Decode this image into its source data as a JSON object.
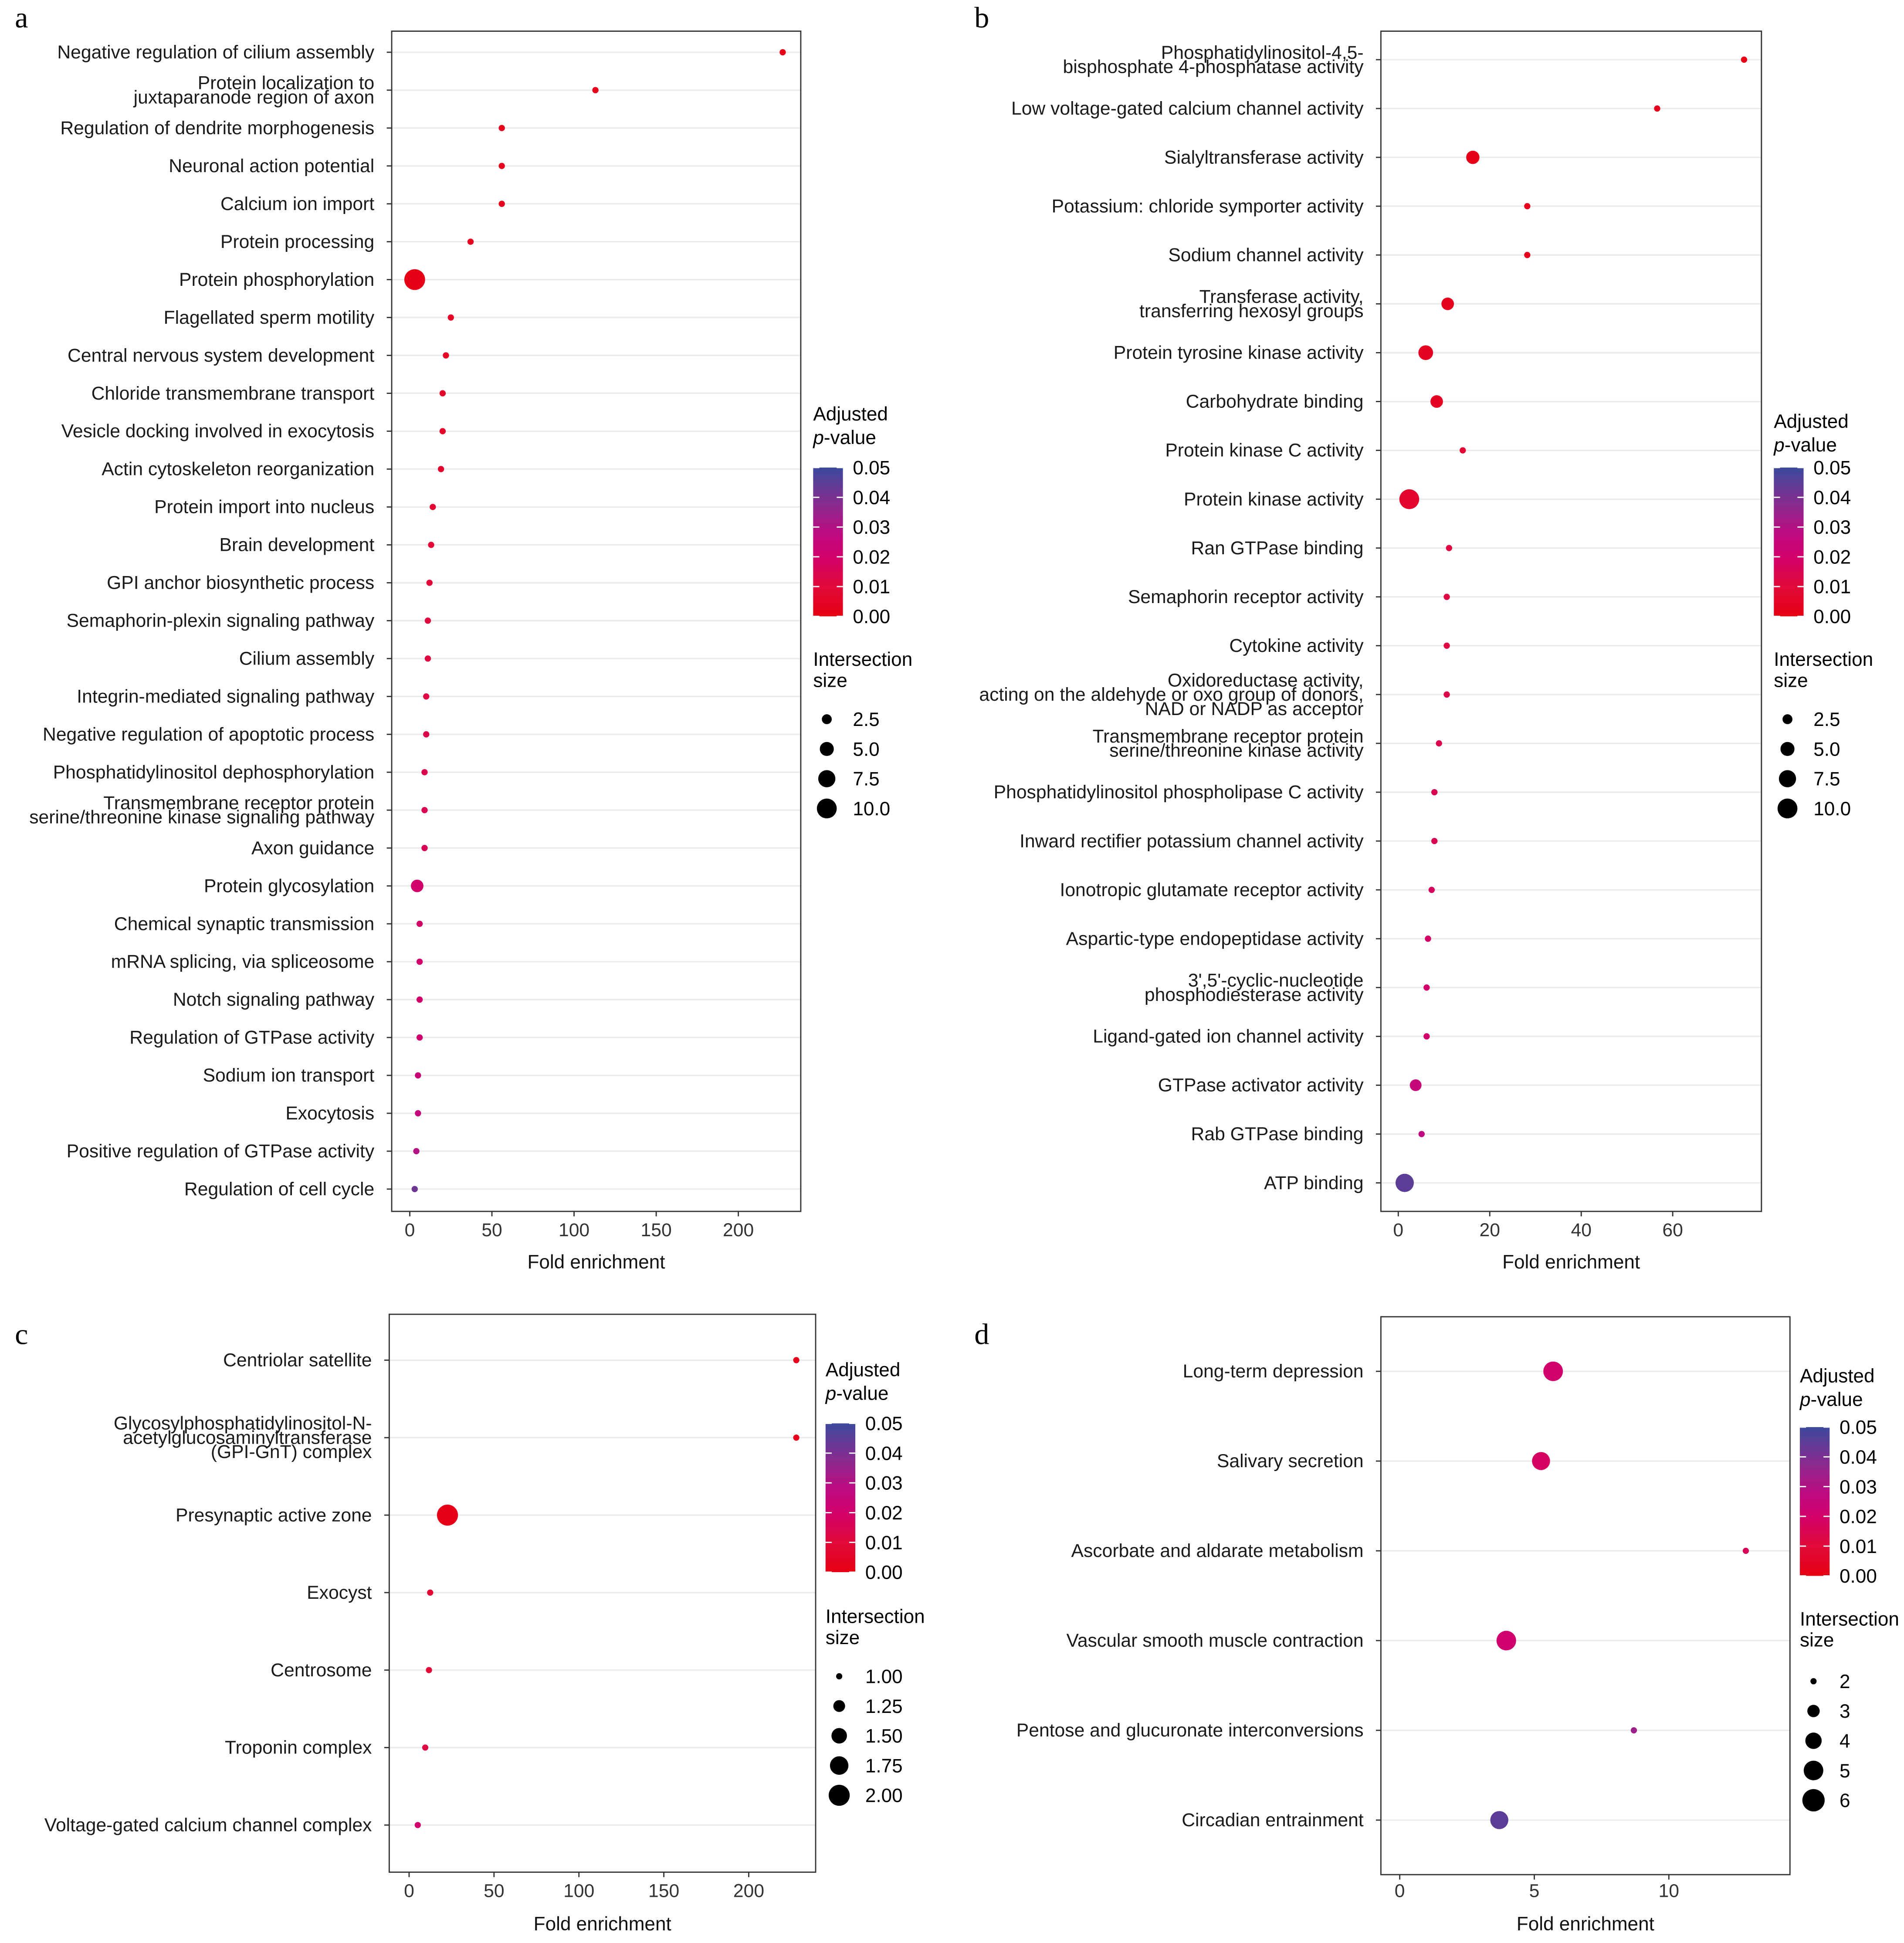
{
  "chart_data": [
    {
      "panel": "a",
      "type": "scatter",
      "xlabel": "Fold enrichment",
      "xticks": [
        0,
        50,
        100,
        150,
        200
      ],
      "xlim": [
        -11,
        238
      ],
      "color_legend": {
        "title": [
          "Adjusted",
          "p-value"
        ],
        "ticks": [
          "0.05",
          "0.04",
          "0.03",
          "0.02",
          "0.01",
          "0.00"
        ],
        "range": [
          0,
          0.05
        ],
        "low_color": "#e60012",
        "mid_color": "#c9007a",
        "high_color": "#3b4a9c"
      },
      "size_legend": {
        "title": [
          "Intersection",
          "size"
        ],
        "values": [
          2.5,
          5.0,
          7.5,
          10.0
        ],
        "labels": [
          "2.5",
          "5.0",
          "7.5",
          "10.0"
        ]
      },
      "terms": [
        {
          "label": [
            "Negative regulation of cilium assembly"
          ],
          "fold": 227,
          "size": 1,
          "p": 0.001
        },
        {
          "label": [
            "Protein localization to",
            "juxtaparanode region of axon"
          ],
          "fold": 113,
          "size": 1,
          "p": 0.002
        },
        {
          "label": [
            "Regulation of dendrite morphogenesis"
          ],
          "fold": 56,
          "size": 1,
          "p": 0.003
        },
        {
          "label": [
            "Neuronal action potential"
          ],
          "fold": 56,
          "size": 1,
          "p": 0.003
        },
        {
          "label": [
            "Calcium ion import"
          ],
          "fold": 56,
          "size": 1,
          "p": 0.003
        },
        {
          "label": [
            "Protein processing"
          ],
          "fold": 37,
          "size": 1,
          "p": 0.004
        },
        {
          "label": [
            "Protein phosphorylation"
          ],
          "fold": 3,
          "size": 11,
          "p": 0.001
        },
        {
          "label": [
            "Flagellated sperm motility"
          ],
          "fold": 25,
          "size": 1,
          "p": 0.005
        },
        {
          "label": [
            "Central nervous system development"
          ],
          "fold": 22,
          "size": 1,
          "p": 0.005
        },
        {
          "label": [
            "Chloride transmembrane transport"
          ],
          "fold": 20,
          "size": 1,
          "p": 0.006
        },
        {
          "label": [
            "Vesicle docking involved in exocytosis"
          ],
          "fold": 20,
          "size": 1,
          "p": 0.006
        },
        {
          "label": [
            "Actin cytoskeleton reorganization"
          ],
          "fold": 19,
          "size": 1,
          "p": 0.007
        },
        {
          "label": [
            "Protein import into nucleus"
          ],
          "fold": 14,
          "size": 1,
          "p": 0.008
        },
        {
          "label": [
            "Brain development"
          ],
          "fold": 13,
          "size": 1,
          "p": 0.009
        },
        {
          "label": [
            "GPI anchor biosynthetic process"
          ],
          "fold": 12,
          "size": 1,
          "p": 0.01
        },
        {
          "label": [
            "Semaphorin-plexin signaling pathway"
          ],
          "fold": 11,
          "size": 1,
          "p": 0.011
        },
        {
          "label": [
            "Cilium assembly"
          ],
          "fold": 11,
          "size": 1,
          "p": 0.011
        },
        {
          "label": [
            "Integrin-mediated signaling pathway"
          ],
          "fold": 10,
          "size": 1,
          "p": 0.012
        },
        {
          "label": [
            "Negative regulation of apoptotic process"
          ],
          "fold": 10,
          "size": 1,
          "p": 0.013
        },
        {
          "label": [
            "Phosphatidylinositol dephosphorylation"
          ],
          "fold": 9,
          "size": 1,
          "p": 0.014
        },
        {
          "label": [
            "Transmembrane receptor protein",
            "serine/threonine kinase signaling pathway"
          ],
          "fold": 9,
          "size": 1,
          "p": 0.015
        },
        {
          "label": [
            "Axon guidance"
          ],
          "fold": 9,
          "size": 1,
          "p": 0.016
        },
        {
          "label": [
            "Protein glycosylation"
          ],
          "fold": 4.5,
          "size": 4,
          "p": 0.02
        },
        {
          "label": [
            "Chemical synaptic transmission"
          ],
          "fold": 6,
          "size": 1,
          "p": 0.019
        },
        {
          "label": [
            "mRNA splicing, via spliceosome"
          ],
          "fold": 6,
          "size": 1,
          "p": 0.02
        },
        {
          "label": [
            "Notch signaling pathway"
          ],
          "fold": 6,
          "size": 1,
          "p": 0.02
        },
        {
          "label": [
            "Regulation of GTPase activity"
          ],
          "fold": 6,
          "size": 1,
          "p": 0.021
        },
        {
          "label": [
            "Sodium ion transport"
          ],
          "fold": 5,
          "size": 1,
          "p": 0.024
        },
        {
          "label": [
            "Exocytosis"
          ],
          "fold": 5,
          "size": 1,
          "p": 0.026
        },
        {
          "label": [
            "Positive regulation of GTPase activity"
          ],
          "fold": 4,
          "size": 1,
          "p": 0.03
        },
        {
          "label": [
            "Regulation of cell cycle"
          ],
          "fold": 3,
          "size": 1,
          "p": 0.042
        }
      ]
    },
    {
      "panel": "b",
      "type": "scatter",
      "xlabel": "Fold enrichment",
      "xticks": [
        0,
        20,
        40,
        60
      ],
      "xlim": [
        -3.8,
        79.4
      ],
      "color_legend": {
        "title": [
          "Adjusted",
          "p-value"
        ],
        "ticks": [
          "0.05",
          "0.04",
          "0.03",
          "0.02",
          "0.01",
          "0.00"
        ],
        "range": [
          0,
          0.05
        ],
        "low_color": "#e60012",
        "mid_color": "#c9007a",
        "high_color": "#3b4a9c"
      },
      "size_legend": {
        "title": [
          "Intersection",
          "size"
        ],
        "values": [
          2.5,
          5.0,
          7.5,
          10.0
        ],
        "labels": [
          "2.5",
          "5.0",
          "7.5",
          "10.0"
        ]
      },
      "terms": [
        {
          "label": [
            "Phosphatidylinositol-4,5-",
            "bisphosphate 4-phosphatase activity"
          ],
          "fold": 75.6,
          "size": 1,
          "p": 0.001
        },
        {
          "label": [
            "Low voltage-gated calcium channel activity"
          ],
          "fold": 56.6,
          "size": 1,
          "p": 0.002
        },
        {
          "label": [
            "Sialyltransferase activity"
          ],
          "fold": 16.3,
          "size": 4.5,
          "p": 0.001
        },
        {
          "label": [
            "Potassium: chloride symporter activity"
          ],
          "fold": 28.2,
          "size": 1,
          "p": 0.003
        },
        {
          "label": [
            "Sodium channel activity"
          ],
          "fold": 28.2,
          "size": 1,
          "p": 0.003
        },
        {
          "label": [
            "Transferase activity,",
            "transferring hexosyl groups"
          ],
          "fold": 10.8,
          "size": 4,
          "p": 0.003
        },
        {
          "label": [
            "Protein tyrosine kinase activity"
          ],
          "fold": 6,
          "size": 5.5,
          "p": 0.004
        },
        {
          "label": [
            "Carbohydrate binding"
          ],
          "fold": 8.4,
          "size": 4,
          "p": 0.004
        },
        {
          "label": [
            "Protein kinase C activity"
          ],
          "fold": 14.1,
          "size": 1,
          "p": 0.008
        },
        {
          "label": [
            "Protein kinase activity"
          ],
          "fold": 2.4,
          "size": 10,
          "p": 0.007
        },
        {
          "label": [
            "Ran GTPase binding"
          ],
          "fold": 11.1,
          "size": 1,
          "p": 0.011
        },
        {
          "label": [
            "Semaphorin receptor activity"
          ],
          "fold": 10.6,
          "size": 1,
          "p": 0.012
        },
        {
          "label": [
            "Cytokine activity"
          ],
          "fold": 10.6,
          "size": 1,
          "p": 0.012
        },
        {
          "label": [
            "Oxidoreductase activity,",
            "acting on the aldehyde or oxo group of donors,",
            "NAD or NADP as acceptor"
          ],
          "fold": 10.6,
          "size": 1,
          "p": 0.013
        },
        {
          "label": [
            "Transmembrane receptor protein",
            "serine/threonine kinase activity"
          ],
          "fold": 8.9,
          "size": 1,
          "p": 0.014
        },
        {
          "label": [
            "Phosphatidylinositol phospholipase C activity"
          ],
          "fold": 7.9,
          "size": 1,
          "p": 0.015
        },
        {
          "label": [
            "Inward rectifier potassium channel activity"
          ],
          "fold": 7.9,
          "size": 1,
          "p": 0.015
        },
        {
          "label": [
            "Ionotropic glutamate receptor activity"
          ],
          "fold": 7.3,
          "size": 1,
          "p": 0.017
        },
        {
          "label": [
            "Aspartic-type endopeptidase activity"
          ],
          "fold": 6.5,
          "size": 1,
          "p": 0.019
        },
        {
          "label": [
            "3',5'-cyclic-nucleotide",
            "phosphodiesterase activity"
          ],
          "fold": 6.2,
          "size": 1,
          "p": 0.02
        },
        {
          "label": [
            "Ligand-gated ion channel activity"
          ],
          "fold": 6.2,
          "size": 1,
          "p": 0.02
        },
        {
          "label": [
            "GTPase activator activity"
          ],
          "fold": 3.8,
          "size": 3.5,
          "p": 0.025
        },
        {
          "label": [
            "Rab GTPase binding"
          ],
          "fold": 5.1,
          "size": 1,
          "p": 0.027
        },
        {
          "label": [
            "ATP binding"
          ],
          "fold": 1.4,
          "size": 8.5,
          "p": 0.045
        }
      ]
    },
    {
      "panel": "c",
      "type": "scatter",
      "xlabel": "Fold enrichment",
      "xticks": [
        0,
        50,
        100,
        150,
        200
      ],
      "xlim": [
        -11.7,
        239.4
      ],
      "color_legend": {
        "title": [
          "Adjusted",
          "p-value"
        ],
        "ticks": [
          "0.05",
          "0.04",
          "0.03",
          "0.02",
          "0.01",
          "0.00"
        ],
        "range": [
          0,
          0.05
        ],
        "low_color": "#e60012",
        "mid_color": "#c9007a",
        "high_color": "#3b4a9c"
      },
      "size_legend": {
        "title": [
          "Intersection",
          "size"
        ],
        "values": [
          1.0,
          1.25,
          1.5,
          1.75,
          2.0
        ],
        "labels": [
          "1.00",
          "1.25",
          "1.50",
          "1.75",
          "2.00"
        ]
      },
      "terms": [
        {
          "label": [
            "Centriolar satellite"
          ],
          "fold": 228,
          "size": 1,
          "p": 0.002
        },
        {
          "label": [
            "Glycosylphosphatidylinositol-N-",
            "acetylglucosaminyltransferase",
            "(GPI-GnT) complex"
          ],
          "fold": 228,
          "size": 1,
          "p": 0.002
        },
        {
          "label": [
            "Presynaptic active zone"
          ],
          "fold": 22.6,
          "size": 2,
          "p": 0.001
        },
        {
          "label": [
            "Exocyst"
          ],
          "fold": 12.4,
          "size": 1,
          "p": 0.008
        },
        {
          "label": [
            "Centrosome"
          ],
          "fold": 11.7,
          "size": 1,
          "p": 0.009
        },
        {
          "label": [
            "Troponin complex"
          ],
          "fold": 9.5,
          "size": 1,
          "p": 0.012
        },
        {
          "label": [
            "Voltage-gated calcium channel complex"
          ],
          "fold": 5.1,
          "size": 1,
          "p": 0.02
        }
      ]
    },
    {
      "panel": "d",
      "type": "scatter",
      "xlabel": "Fold enrichment",
      "xticks": [
        0,
        5,
        10
      ],
      "xlim": [
        -0.7,
        14.5
      ],
      "color_legend": {
        "title": [
          "Adjusted",
          "p-value"
        ],
        "ticks": [
          "0.05",
          "0.04",
          "0.03",
          "0.02",
          "0.01",
          "0.00"
        ],
        "range": [
          0,
          0.05
        ],
        "low_color": "#e60012",
        "mid_color": "#c9007a",
        "high_color": "#3b4a9c"
      },
      "size_legend": {
        "title": [
          "Intersection",
          "size"
        ],
        "values": [
          2,
          3,
          4,
          5,
          6
        ],
        "labels": [
          "2",
          "3",
          "4",
          "5",
          "6"
        ]
      },
      "terms": [
        {
          "label": [
            "Long-term depression"
          ],
          "fold": 5.7,
          "size": 5,
          "p": 0.02
        },
        {
          "label": [
            "Salivary secretion"
          ],
          "fold": 5.25,
          "size": 4.5,
          "p": 0.018
        },
        {
          "label": [
            "Ascorbate and aldarate metabolism"
          ],
          "fold": 12.86,
          "size": 2,
          "p": 0.016
        },
        {
          "label": [
            "Vascular smooth muscle contraction"
          ],
          "fold": 3.96,
          "size": 5,
          "p": 0.021
        },
        {
          "label": [
            "Pentose and glucuronate interconversions"
          ],
          "fold": 8.7,
          "size": 2,
          "p": 0.034
        },
        {
          "label": [
            "Circadian entrainment"
          ],
          "fold": 3.7,
          "size": 4.5,
          "p": 0.045
        }
      ]
    }
  ]
}
